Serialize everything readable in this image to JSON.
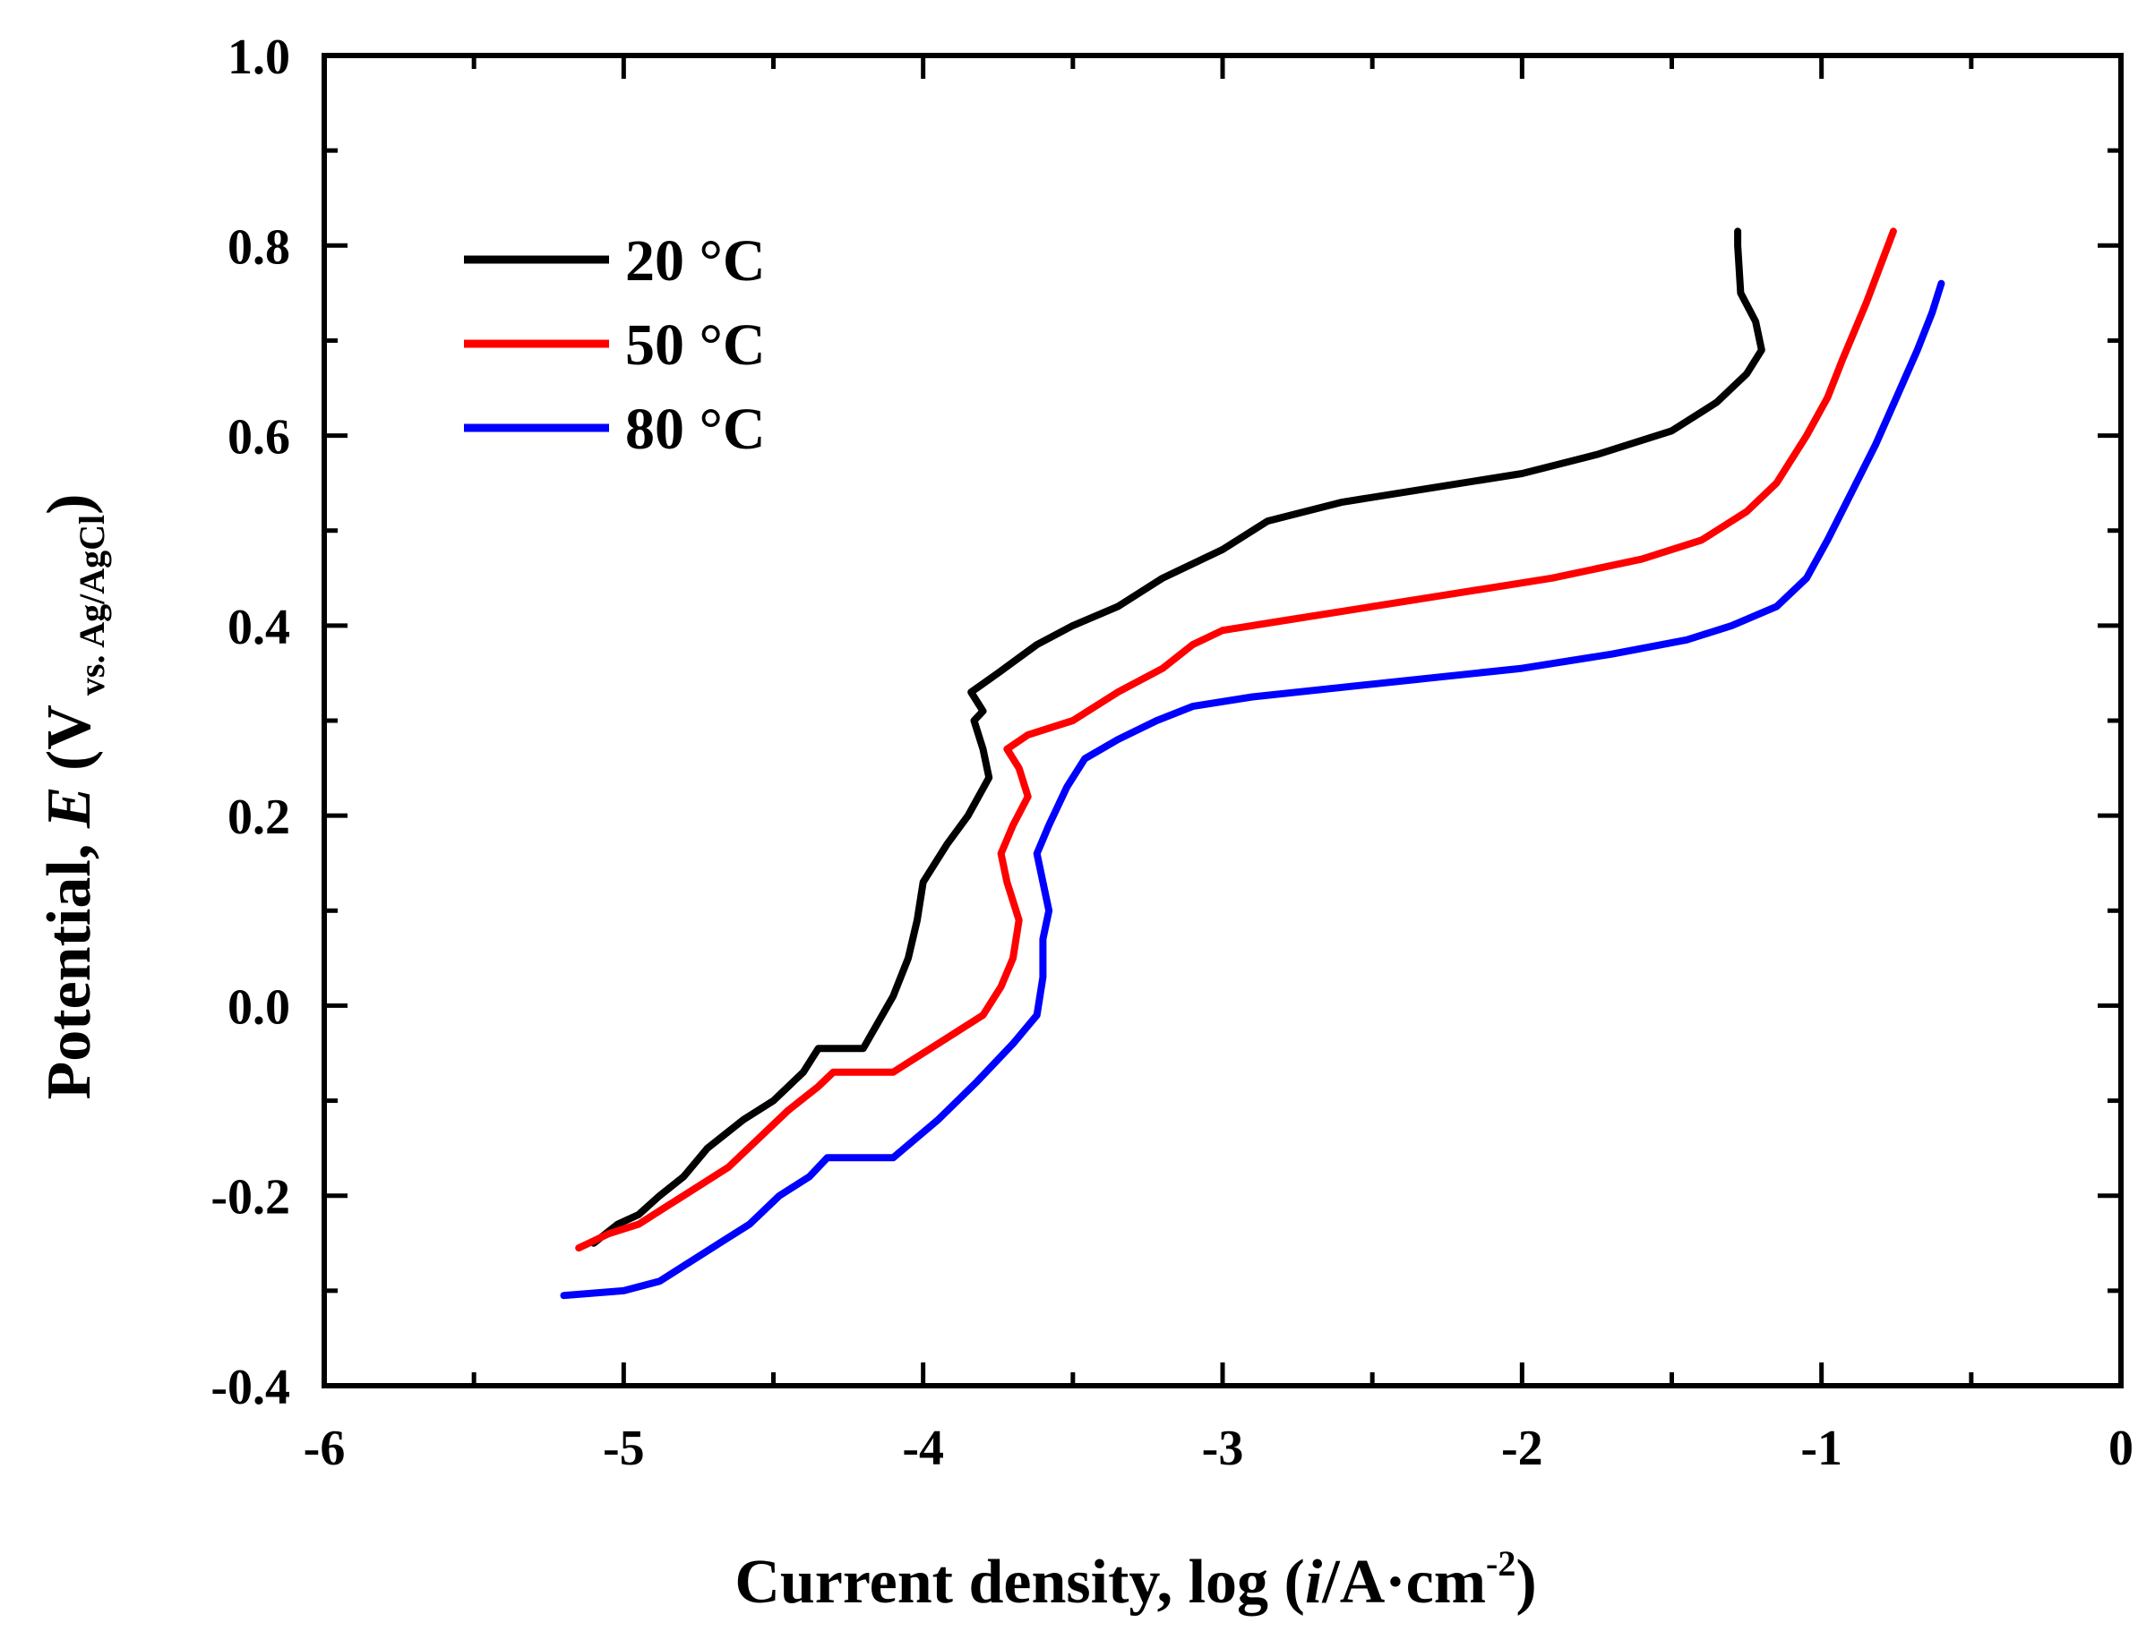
{
  "chart_data": {
    "type": "line",
    "title": "",
    "xlabel": {
      "prefix": "Current density,  log (",
      "var": "i",
      "unit": "/A·cm",
      "sup": "-2",
      "suffix": ")"
    },
    "ylabel": {
      "prefix": "Potential, ",
      "var": "E",
      "unit": " (V",
      "sub": " vs. Ag/AgCl",
      "suffix": ")"
    },
    "xlim": [
      -6,
      0
    ],
    "ylim": [
      -0.4,
      1.0
    ],
    "xticks": [
      -6,
      -5,
      -4,
      -3,
      -2,
      -1,
      0
    ],
    "xtick_labels": [
      "-6",
      "-5",
      "-4",
      "-3",
      "-2",
      "-1",
      "0"
    ],
    "yticks": [
      -0.4,
      -0.2,
      0.0,
      0.2,
      0.4,
      0.6,
      0.8,
      1.0
    ],
    "ytick_labels": [
      "-0.4",
      "-0.2",
      "0.0",
      "0.2",
      "0.4",
      "0.6",
      "0.8",
      "1.0"
    ],
    "legend_position": "top-left",
    "series": [
      {
        "name": "20 °C",
        "color": "#000000",
        "points": [
          [
            -5.1,
            -0.25
          ],
          [
            -5.02,
            -0.23
          ],
          [
            -4.95,
            -0.22
          ],
          [
            -4.88,
            -0.2
          ],
          [
            -4.8,
            -0.18
          ],
          [
            -4.72,
            -0.15
          ],
          [
            -4.6,
            -0.12
          ],
          [
            -4.5,
            -0.1
          ],
          [
            -4.4,
            -0.07
          ],
          [
            -4.35,
            -0.045
          ],
          [
            -4.2,
            -0.045
          ],
          [
            -4.1,
            0.01
          ],
          [
            -4.05,
            0.05
          ],
          [
            -4.02,
            0.09
          ],
          [
            -4.0,
            0.13
          ],
          [
            -3.92,
            0.17
          ],
          [
            -3.85,
            0.2
          ],
          [
            -3.78,
            0.24
          ],
          [
            -3.8,
            0.27
          ],
          [
            -3.83,
            0.3
          ],
          [
            -3.8,
            0.31
          ],
          [
            -3.84,
            0.33
          ],
          [
            -3.75,
            0.35
          ],
          [
            -3.62,
            0.38
          ],
          [
            -3.5,
            0.4
          ],
          [
            -3.35,
            0.42
          ],
          [
            -3.2,
            0.45
          ],
          [
            -3.0,
            0.48
          ],
          [
            -2.85,
            0.51
          ],
          [
            -2.6,
            0.53
          ],
          [
            -2.3,
            0.545
          ],
          [
            -2.0,
            0.56
          ],
          [
            -1.75,
            0.58
          ],
          [
            -1.5,
            0.605
          ],
          [
            -1.35,
            0.635
          ],
          [
            -1.25,
            0.665
          ],
          [
            -1.2,
            0.69
          ],
          [
            -1.22,
            0.72
          ],
          [
            -1.27,
            0.75
          ],
          [
            -1.28,
            0.8
          ],
          [
            -1.28,
            0.815
          ]
        ]
      },
      {
        "name": "50 °C",
        "color": "#ff0000",
        "points": [
          [
            -5.15,
            -0.255
          ],
          [
            -5.05,
            -0.24
          ],
          [
            -4.95,
            -0.23
          ],
          [
            -4.85,
            -0.21
          ],
          [
            -4.75,
            -0.19
          ],
          [
            -4.65,
            -0.17
          ],
          [
            -4.55,
            -0.14
          ],
          [
            -4.45,
            -0.11
          ],
          [
            -4.35,
            -0.085
          ],
          [
            -4.3,
            -0.07
          ],
          [
            -4.1,
            -0.07
          ],
          [
            -3.95,
            -0.04
          ],
          [
            -3.8,
            -0.01
          ],
          [
            -3.74,
            0.02
          ],
          [
            -3.7,
            0.05
          ],
          [
            -3.68,
            0.09
          ],
          [
            -3.72,
            0.13
          ],
          [
            -3.74,
            0.16
          ],
          [
            -3.7,
            0.19
          ],
          [
            -3.65,
            0.22
          ],
          [
            -3.68,
            0.25
          ],
          [
            -3.72,
            0.27
          ],
          [
            -3.65,
            0.285
          ],
          [
            -3.5,
            0.3
          ],
          [
            -3.35,
            0.33
          ],
          [
            -3.2,
            0.355
          ],
          [
            -3.1,
            0.38
          ],
          [
            -3.0,
            0.395
          ],
          [
            -2.8,
            0.405
          ],
          [
            -2.5,
            0.42
          ],
          [
            -2.2,
            0.435
          ],
          [
            -1.9,
            0.45
          ],
          [
            -1.6,
            0.47
          ],
          [
            -1.4,
            0.49
          ],
          [
            -1.25,
            0.52
          ],
          [
            -1.15,
            0.55
          ],
          [
            -1.05,
            0.6
          ],
          [
            -0.98,
            0.64
          ],
          [
            -0.93,
            0.68
          ],
          [
            -0.85,
            0.74
          ],
          [
            -0.76,
            0.815
          ]
        ]
      },
      {
        "name": "80 °C",
        "color": "#0000ff",
        "points": [
          [
            -5.2,
            -0.305
          ],
          [
            -5.0,
            -0.3
          ],
          [
            -4.88,
            -0.29
          ],
          [
            -4.78,
            -0.27
          ],
          [
            -4.68,
            -0.25
          ],
          [
            -4.58,
            -0.23
          ],
          [
            -4.48,
            -0.2
          ],
          [
            -4.38,
            -0.18
          ],
          [
            -4.32,
            -0.16
          ],
          [
            -4.1,
            -0.16
          ],
          [
            -3.95,
            -0.12
          ],
          [
            -3.82,
            -0.08
          ],
          [
            -3.7,
            -0.04
          ],
          [
            -3.62,
            -0.01
          ],
          [
            -3.6,
            0.03
          ],
          [
            -3.6,
            0.07
          ],
          [
            -3.58,
            0.1
          ],
          [
            -3.6,
            0.13
          ],
          [
            -3.62,
            0.16
          ],
          [
            -3.58,
            0.19
          ],
          [
            -3.52,
            0.23
          ],
          [
            -3.46,
            0.26
          ],
          [
            -3.35,
            0.28
          ],
          [
            -3.22,
            0.3
          ],
          [
            -3.1,
            0.315
          ],
          [
            -2.9,
            0.325
          ],
          [
            -2.6,
            0.335
          ],
          [
            -2.3,
            0.345
          ],
          [
            -2.0,
            0.355
          ],
          [
            -1.7,
            0.37
          ],
          [
            -1.45,
            0.385
          ],
          [
            -1.3,
            0.4
          ],
          [
            -1.15,
            0.42
          ],
          [
            -1.05,
            0.45
          ],
          [
            -0.98,
            0.49
          ],
          [
            -0.9,
            0.54
          ],
          [
            -0.82,
            0.59
          ],
          [
            -0.75,
            0.64
          ],
          [
            -0.68,
            0.69
          ],
          [
            -0.63,
            0.73
          ],
          [
            -0.6,
            0.76
          ]
        ]
      }
    ]
  }
}
